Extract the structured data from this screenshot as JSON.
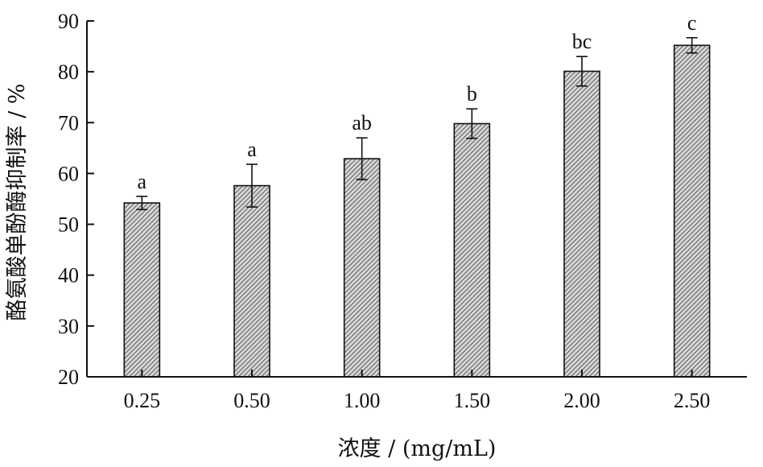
{
  "chart_data": {
    "type": "bar",
    "categories": [
      "0.25",
      "0.50",
      "1.00",
      "1.50",
      "2.00",
      "2.50"
    ],
    "values": [
      54.2,
      57.6,
      62.9,
      69.8,
      80.1,
      85.2
    ],
    "errors": [
      1.3,
      4.2,
      4.1,
      2.9,
      2.9,
      1.5
    ],
    "significance_labels": [
      "a",
      "a",
      "ab",
      "b",
      "bc",
      "c"
    ],
    "xlabel": "浓度 / (mg/mL)",
    "ylabel": "酪氨酸单酚酶抑制率 / %",
    "ylim": [
      20,
      90
    ],
    "yticks": [
      20,
      30,
      40,
      50,
      60,
      70,
      80,
      90
    ],
    "grid": false,
    "colors": {
      "bar_fill": "#cfcfcf",
      "bar_hatch": "#3a3a3a",
      "axis": "#111111"
    }
  }
}
